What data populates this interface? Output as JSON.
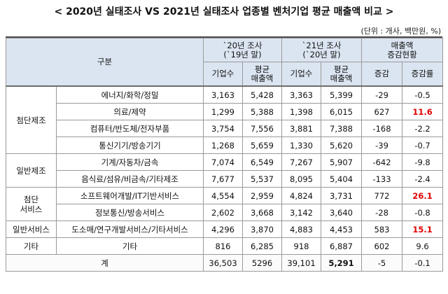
{
  "title": "< 2020년 실태조사 VS 2021년 실태조사 업종별 벤처기업 평균 매출액 비교 >",
  "unit": "(단위 : 개사, 백만원, %)",
  "header": {
    "category": "구분",
    "group2020": "`20년 조사\n(`19년 말)",
    "group2021": "`21년 조사\n(`20년 말)",
    "groupChange": "매출액\n증감현황",
    "firms": "기업수",
    "avgSales": "평균\n매출액",
    "change": "증감",
    "changeRate": "증감률"
  },
  "rows": [
    {
      "group": "첨단제조",
      "sub": "에너지/화학/정밀",
      "f20": "3,163",
      "s20": "5,428",
      "f21": "3,363",
      "s21": "5,399",
      "chg": "-29",
      "rate": "-0.5",
      "red": false
    },
    {
      "group": "첨단제조",
      "sub": "의료/제약",
      "f20": "1,299",
      "s20": "5,388",
      "f21": "1,398",
      "s21": "6,015",
      "chg": "627",
      "rate": "11.6",
      "red": true
    },
    {
      "group": "첨단제조",
      "sub": "컴퓨터/반도체/전자부품",
      "f20": "3,754",
      "s20": "7,556",
      "f21": "3,881",
      "s21": "7,388",
      "chg": "-168",
      "rate": "-2.2",
      "red": false
    },
    {
      "group": "첨단제조",
      "sub": "통신기기/방송기기",
      "f20": "1,268",
      "s20": "5,659",
      "f21": "1,330",
      "s21": "5,620",
      "chg": "-39",
      "rate": "-0.7",
      "red": false
    },
    {
      "group": "일반제조",
      "sub": "기계/자동차/금속",
      "f20": "7,074",
      "s20": "6,549",
      "f21": "7,267",
      "s21": "5,907",
      "chg": "-642",
      "rate": "-9.8",
      "red": false
    },
    {
      "group": "일반제조",
      "sub": "음식료/섬유/비금속/기타제조",
      "f20": "7,677",
      "s20": "5,537",
      "f21": "8,095",
      "s21": "5,404",
      "chg": "-133",
      "rate": "-2.4",
      "red": false
    },
    {
      "group": "첨단\n서비스",
      "sub": "소프트웨어개발/IT기반서비스",
      "f20": "4,554",
      "s20": "2,959",
      "f21": "4,824",
      "s21": "3,731",
      "chg": "772",
      "rate": "26.1",
      "red": true
    },
    {
      "group": "첨단\n서비스",
      "sub": "정보통신/방송서비스",
      "f20": "2,602",
      "s20": "3,668",
      "f21": "3,142",
      "s21": "3,640",
      "chg": "-28",
      "rate": "-0.8",
      "red": false
    },
    {
      "group": "일반서비스",
      "sub": "도소매/연구개발서비스/기타서비스",
      "f20": "4,296",
      "s20": "3,870",
      "f21": "4,883",
      "s21": "4,453",
      "chg": "583",
      "rate": "15.1",
      "red": true
    },
    {
      "group": "기타",
      "sub": "기타",
      "f20": "816",
      "s20": "6,285",
      "f21": "918",
      "s21": "6,887",
      "chg": "602",
      "rate": "9.6",
      "red": false
    }
  ],
  "total": {
    "label": "계",
    "f20": "36,503",
    "s20": "5296",
    "f21": "39,101",
    "s21": "5,291",
    "chg": "-5",
    "rate": "-0.1"
  }
}
